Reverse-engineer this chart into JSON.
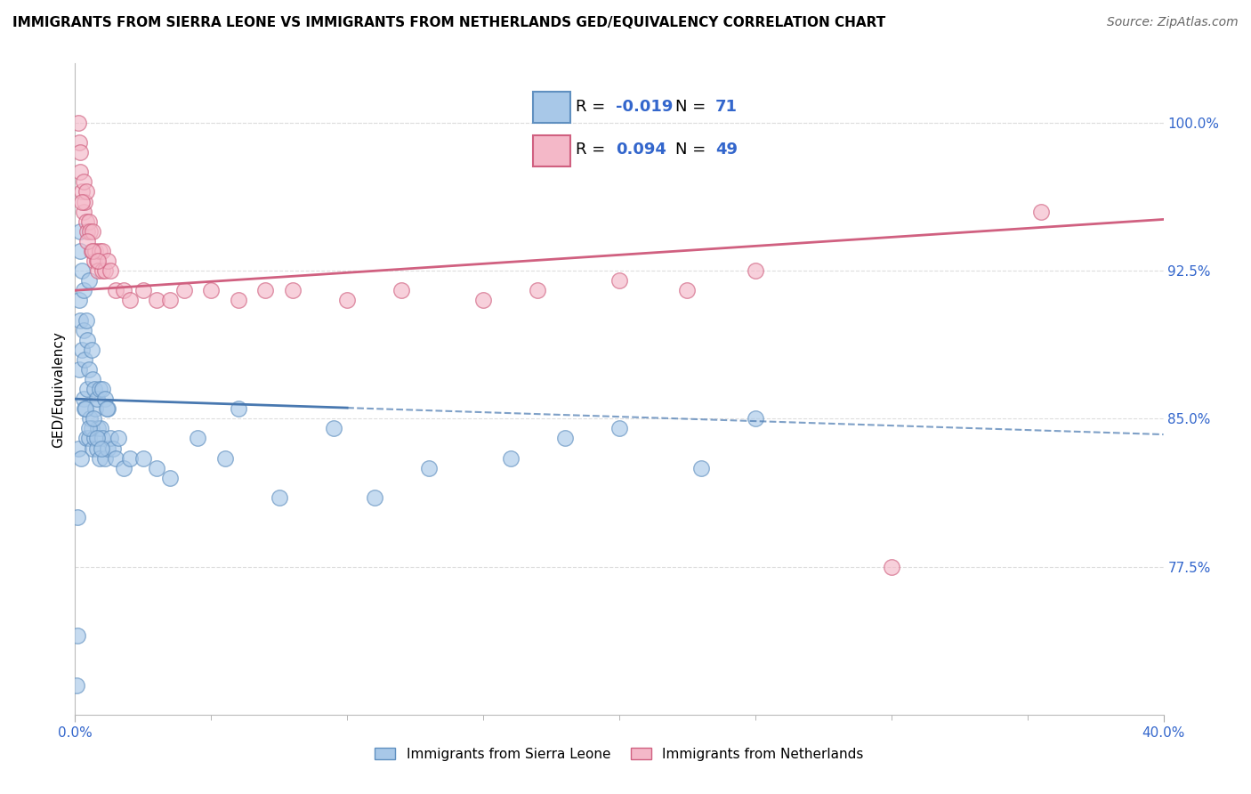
{
  "title": "IMMIGRANTS FROM SIERRA LEONE VS IMMIGRANTS FROM NETHERLANDS GED/EQUIVALENCY CORRELATION CHART",
  "source": "Source: ZipAtlas.com",
  "xlabel_blue": "Immigrants from Sierra Leone",
  "xlabel_pink": "Immigrants from Netherlands",
  "ylabel": "GED/Equivalency",
  "xlim": [
    0.0,
    40.0
  ],
  "ylim": [
    70.0,
    103.0
  ],
  "yticks": [
    77.5,
    85.0,
    92.5,
    100.0
  ],
  "legend_blue_R": "-0.019",
  "legend_blue_N": "71",
  "legend_pink_R": "0.094",
  "legend_pink_N": "49",
  "blue_color": "#a8c8e8",
  "pink_color": "#f4b8c8",
  "blue_edge_color": "#6090c0",
  "pink_edge_color": "#d06080",
  "blue_line_color": "#4878b0",
  "pink_line_color": "#d06080",
  "title_fontsize": 11,
  "source_fontsize": 10,
  "axis_label_fontsize": 11,
  "tick_fontsize": 11,
  "blue_line_intercept": 86.0,
  "blue_line_slope": -0.045,
  "pink_line_intercept": 91.5,
  "pink_line_slope": 0.09,
  "blue_scatter_x": [
    0.05,
    0.1,
    0.12,
    0.15,
    0.15,
    0.18,
    0.2,
    0.2,
    0.25,
    0.25,
    0.3,
    0.3,
    0.3,
    0.35,
    0.35,
    0.4,
    0.4,
    0.45,
    0.45,
    0.5,
    0.5,
    0.5,
    0.55,
    0.6,
    0.6,
    0.65,
    0.65,
    0.7,
    0.7,
    0.75,
    0.8,
    0.8,
    0.85,
    0.9,
    0.9,
    0.95,
    1.0,
    1.0,
    1.1,
    1.1,
    1.2,
    1.2,
    1.3,
    1.4,
    1.5,
    1.6,
    1.8,
    2.0,
    2.5,
    3.0,
    3.5,
    4.5,
    5.5,
    6.0,
    7.5,
    9.5,
    11.0,
    13.0,
    16.0,
    18.0,
    20.0,
    23.0,
    25.0,
    0.08,
    0.22,
    0.38,
    0.52,
    0.68,
    0.82,
    0.98,
    1.15
  ],
  "blue_scatter_y": [
    71.5,
    74.0,
    83.5,
    87.5,
    91.0,
    93.5,
    94.5,
    90.0,
    88.5,
    92.5,
    86.0,
    89.5,
    91.5,
    85.5,
    88.0,
    84.0,
    90.0,
    86.5,
    89.0,
    84.0,
    87.5,
    92.0,
    85.0,
    84.5,
    88.5,
    83.5,
    87.0,
    84.0,
    86.5,
    85.5,
    83.5,
    86.0,
    84.5,
    83.0,
    86.5,
    84.5,
    84.0,
    86.5,
    83.0,
    86.0,
    83.5,
    85.5,
    84.0,
    83.5,
    83.0,
    84.0,
    82.5,
    83.0,
    83.0,
    82.5,
    82.0,
    84.0,
    83.0,
    85.5,
    81.0,
    84.5,
    81.0,
    82.5,
    83.0,
    84.0,
    84.5,
    82.5,
    85.0,
    80.0,
    83.0,
    85.5,
    84.5,
    85.0,
    84.0,
    83.5,
    85.5
  ],
  "pink_scatter_x": [
    0.12,
    0.15,
    0.2,
    0.2,
    0.25,
    0.3,
    0.3,
    0.35,
    0.4,
    0.4,
    0.45,
    0.5,
    0.55,
    0.6,
    0.65,
    0.7,
    0.75,
    0.8,
    0.85,
    0.9,
    1.0,
    1.0,
    1.1,
    1.2,
    1.3,
    1.5,
    1.8,
    2.0,
    2.5,
    3.0,
    3.5,
    4.0,
    5.0,
    6.0,
    7.0,
    8.0,
    10.0,
    12.0,
    15.0,
    17.0,
    20.0,
    22.5,
    25.0,
    30.0,
    35.5,
    0.25,
    0.45,
    0.65,
    0.85
  ],
  "pink_scatter_y": [
    100.0,
    99.0,
    97.5,
    98.5,
    96.5,
    95.5,
    97.0,
    96.0,
    95.0,
    96.5,
    94.5,
    95.0,
    94.5,
    93.5,
    94.5,
    93.0,
    93.5,
    93.0,
    92.5,
    93.5,
    92.5,
    93.5,
    92.5,
    93.0,
    92.5,
    91.5,
    91.5,
    91.0,
    91.5,
    91.0,
    91.0,
    91.5,
    91.5,
    91.0,
    91.5,
    91.5,
    91.0,
    91.5,
    91.0,
    91.5,
    92.0,
    91.5,
    92.5,
    77.5,
    95.5,
    96.0,
    94.0,
    93.5,
    93.0
  ]
}
